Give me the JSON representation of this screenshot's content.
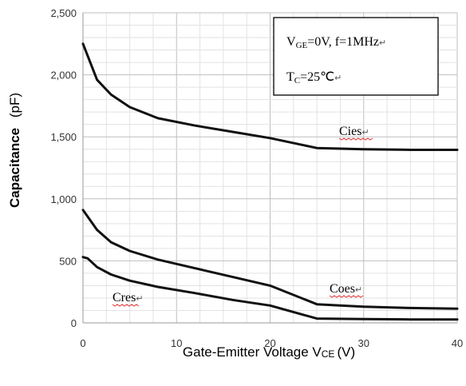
{
  "chart_data": {
    "type": "line",
    "xlabel": {
      "main": "Gate-Emitter Voltage V",
      "sub": "CE",
      "unit": "(V)"
    },
    "ylabel": {
      "bold": "Capacitance",
      "unit": "(pF)"
    },
    "xlim": [
      0,
      40
    ],
    "ylim": [
      0,
      2500
    ],
    "x_ticks": [
      0,
      10,
      20,
      30,
      40
    ],
    "y_ticks": [
      0,
      500,
      1000,
      1500,
      2000,
      2500
    ],
    "x_tick_labels": [
      "0",
      "10",
      "20",
      "30",
      "40"
    ],
    "y_tick_labels": [
      "0",
      "500",
      "1,000",
      "1,500",
      "2,000",
      "2,500"
    ],
    "grid": true,
    "legend_box": {
      "line1": {
        "v": "V",
        "vsub": "GE",
        "rest": "=0V, f=1MHz",
        "mark": "↵"
      },
      "line2": {
        "t": "T",
        "tsub": "C",
        "rest": "=25℃",
        "mark": "↵"
      }
    },
    "series": [
      {
        "name": "Cies",
        "label_text": "Cies",
        "label_mark": "↵",
        "x": [
          0,
          1.5,
          3,
          5,
          8,
          12,
          16,
          20,
          25,
          30,
          35,
          40
        ],
        "y": [
          2250,
          1960,
          1840,
          1740,
          1650,
          1590,
          1540,
          1490,
          1410,
          1400,
          1395,
          1395
        ]
      },
      {
        "name": "Coes",
        "label_text": "Coes",
        "label_mark": "↵",
        "x": [
          0,
          1.5,
          3,
          5,
          8,
          12,
          16,
          20,
          25,
          30,
          35,
          40
        ],
        "y": [
          910,
          750,
          650,
          580,
          510,
          440,
          370,
          300,
          150,
          130,
          120,
          115
        ]
      },
      {
        "name": "Cres",
        "label_text": "Cres",
        "label_mark": "↵",
        "x": [
          0,
          0.5,
          1.5,
          3,
          5,
          8,
          12,
          16,
          20,
          25,
          30,
          35,
          40
        ],
        "y": [
          530,
          520,
          450,
          390,
          340,
          290,
          240,
          185,
          140,
          35,
          30,
          28,
          28
        ]
      }
    ]
  }
}
